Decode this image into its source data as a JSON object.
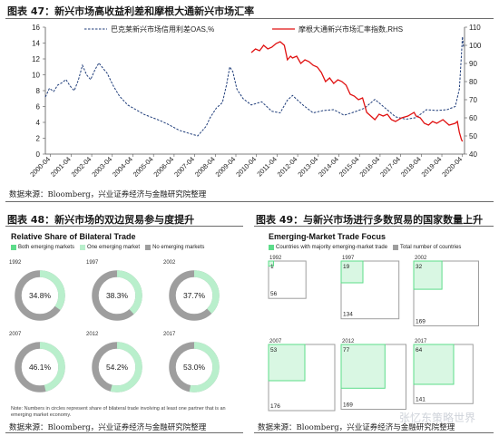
{
  "top": {
    "title": "图表 47：新兴市场高收益利差和摩根大通新兴市场汇率",
    "source": "数据来源：Bloomberg，兴业证券经济与金融研究院整理"
  },
  "left": {
    "title": "图表 48：新兴市场的双边贸易参与度提升",
    "source": "数据来源：Bloomberg，兴业证券经济与金融研究院整理"
  },
  "right": {
    "title": "图表 49：与新兴市场进行多数贸易的国家数量上升",
    "source": "数据来源：Bloomberg，兴业证券经济与金融研究院整理"
  },
  "watermark": "张忆东策略世界",
  "colors": {
    "oas": "#1f3d7a",
    "fx": "#e01010",
    "dark_green": "#5ddc8a",
    "light_green": "#b9efcc",
    "gray": "#9e9e9e",
    "box_fill": "#d9f7e3"
  },
  "chart_data": [
    {
      "type": "line",
      "series": [
        {
          "name": "巴克莱新兴市场信用利差OAS,%",
          "axis": "left",
          "style": "dashed",
          "x": [
            2000.0,
            2000.2,
            2000.4,
            2000.6,
            2000.8,
            2001.0,
            2001.2,
            2001.4,
            2001.6,
            2001.8,
            2002.0,
            2002.2,
            2002.4,
            2002.6,
            2002.8,
            2003.0,
            2003.3,
            2003.6,
            2004.0,
            2004.4,
            2004.8,
            2005.2,
            2005.6,
            2006.0,
            2006.5,
            2007.0,
            2007.4,
            2007.8,
            2008.0,
            2008.3,
            2008.6,
            2008.8,
            2008.95,
            2009.1,
            2009.3,
            2009.6,
            2010.0,
            2010.5,
            2011.0,
            2011.4,
            2011.75,
            2012.0,
            2012.5,
            2013.0,
            2013.5,
            2014.0,
            2014.5,
            2015.0,
            2015.5,
            2016.0,
            2016.5,
            2017.0,
            2017.5,
            2018.0,
            2018.5,
            2019.0,
            2019.5,
            2019.9,
            2020.1,
            2020.2,
            2020.25,
            2020.3
          ],
          "y": [
            7.2,
            8.3,
            7.9,
            8.7,
            9.0,
            9.4,
            8.6,
            8.0,
            9.3,
            11.2,
            10.0,
            9.4,
            10.6,
            11.5,
            10.8,
            10.2,
            8.6,
            7.3,
            6.2,
            5.6,
            5.0,
            4.6,
            4.2,
            3.7,
            3.0,
            2.6,
            2.3,
            3.5,
            4.6,
            5.8,
            6.5,
            8.8,
            11.0,
            10.4,
            8.2,
            7.0,
            6.2,
            6.6,
            5.4,
            5.2,
            6.8,
            7.4,
            6.2,
            5.2,
            5.5,
            5.6,
            4.9,
            5.3,
            5.8,
            6.9,
            5.8,
            4.7,
            4.4,
            4.6,
            5.6,
            5.5,
            5.6,
            6.0,
            8.2,
            12.5,
            14.8,
            13.5
          ]
        },
        {
          "name": "摩根大通新兴市场汇率指数,RHS",
          "axis": "right",
          "style": "solid",
          "x": [
            2010.0,
            2010.2,
            2010.4,
            2010.6,
            2010.8,
            2011.0,
            2011.2,
            2011.4,
            2011.6,
            2011.75,
            2011.9,
            2012.0,
            2012.2,
            2012.4,
            2012.6,
            2012.8,
            2013.0,
            2013.2,
            2013.4,
            2013.6,
            2013.8,
            2014.0,
            2014.2,
            2014.4,
            2014.6,
            2014.8,
            2015.0,
            2015.2,
            2015.4,
            2015.6,
            2015.8,
            2016.0,
            2016.2,
            2016.4,
            2016.6,
            2016.8,
            2017.0,
            2017.3,
            2017.6,
            2017.9,
            2018.0,
            2018.2,
            2018.4,
            2018.6,
            2018.8,
            2019.0,
            2019.3,
            2019.6,
            2019.9,
            2020.0,
            2020.1,
            2020.2,
            2020.25
          ],
          "y": [
            96,
            98,
            97,
            100,
            98,
            99,
            101,
            102,
            100,
            92,
            94,
            93,
            94,
            90,
            92,
            91,
            89,
            88,
            85,
            80,
            82,
            79,
            81,
            80,
            78,
            73,
            72,
            70,
            71,
            63,
            61,
            59,
            62,
            61,
            62,
            59,
            58,
            60,
            61,
            63,
            61,
            60,
            57,
            56,
            58,
            57,
            59,
            56,
            57,
            58,
            52,
            48,
            47
          ]
        }
      ],
      "x_ticks": [
        "2000-04",
        "2001-04",
        "2002-04",
        "2003-04",
        "2004-04",
        "2005-04",
        "2006-04",
        "2007-04",
        "2008-04",
        "2009-04",
        "2010-04",
        "2011-04",
        "2012-04",
        "2013-04",
        "2014-04",
        "2015-04",
        "2016-04",
        "2017-04",
        "2018-04",
        "2019-04",
        "2020-04"
      ],
      "y_left_ticks": [
        0,
        2,
        4,
        6,
        8,
        10,
        12,
        14,
        16
      ],
      "y_right_ticks": [
        40,
        50,
        60,
        70,
        80,
        90,
        100,
        110
      ],
      "ylim_left": [
        0,
        16
      ],
      "ylim_right": [
        40,
        110
      ],
      "xlim": [
        2000.0,
        2020.35
      ],
      "legend_position": "top"
    },
    {
      "type": "pie",
      "title": "Relative Share of Bilateral Trade",
      "legend": [
        "Both emerging markets",
        "One emerging market",
        "No emerging markets"
      ],
      "years": [
        "1992",
        "1997",
        "2002",
        "2007",
        "2012",
        "2017"
      ],
      "values": [
        34.8,
        38.3,
        37.7,
        46.1,
        54.2,
        53.0
      ],
      "value_labels": [
        "34.8%",
        "38.3%",
        "37.7%",
        "46.1%",
        "54.2%",
        "53.0%"
      ],
      "note": "Note: Numbers in circles represent share of bilateral trade involving at least one partner that is an emerging market economy."
    },
    {
      "type": "bar",
      "title": "Emerging-Market Trade Focus",
      "legend": [
        "Countries with majority emerging-market trade",
        "Total number of countries"
      ],
      "years": [
        "1992",
        "1997",
        "2002",
        "2007",
        "2012",
        "2017"
      ],
      "majority": [
        1,
        19,
        32,
        53,
        77,
        64
      ],
      "total": [
        56,
        134,
        169,
        176,
        169,
        141
      ]
    }
  ]
}
